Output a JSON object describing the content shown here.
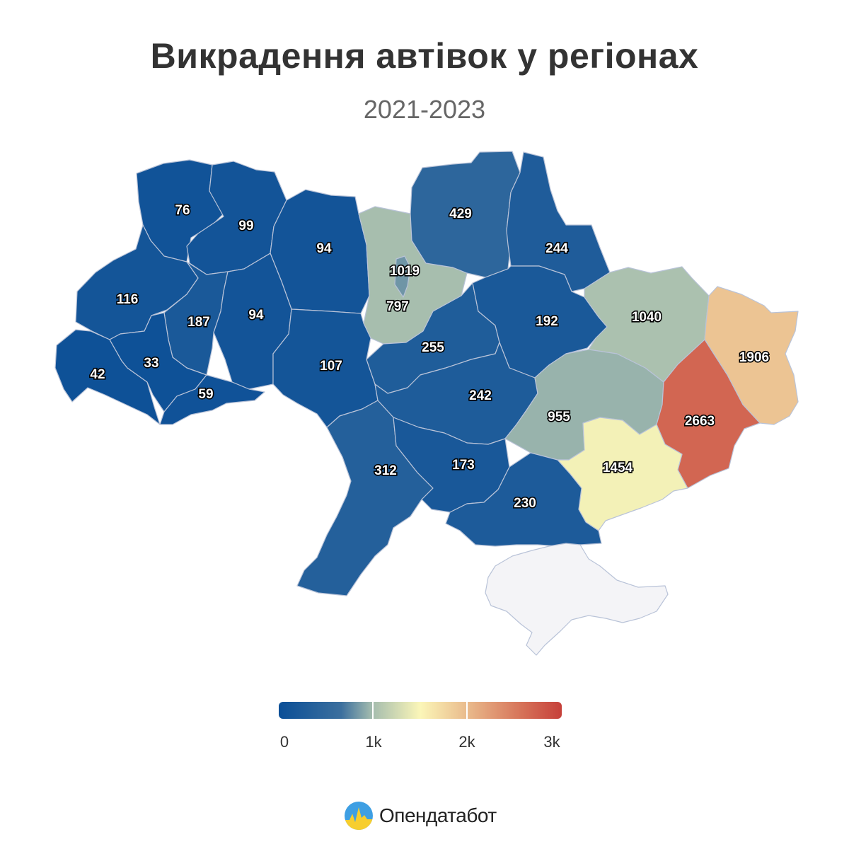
{
  "title": "Викрадення автівок у регіонах",
  "subtitle": "2021-2023",
  "legend": {
    "ticks": [
      "0",
      "1k",
      "2k",
      "3k"
    ],
    "min": 0,
    "max": 3000,
    "colors": [
      "#0b4f97",
      "#a4bcae",
      "#fbf6b8",
      "#e9b98b",
      "#c6403a"
    ]
  },
  "regions": [
    {
      "id": "volyn",
      "value": 76
    },
    {
      "id": "rivne",
      "value": 99
    },
    {
      "id": "zhytomyr",
      "value": 94
    },
    {
      "id": "kyiv-oblast",
      "value": 1019
    },
    {
      "id": "kyiv-city",
      "value": 797
    },
    {
      "id": "chernihiv",
      "value": 429
    },
    {
      "id": "sumy",
      "value": 244
    },
    {
      "id": "lviv",
      "value": 116
    },
    {
      "id": "ternopil",
      "value": 187
    },
    {
      "id": "khmelnytskyi",
      "value": 94
    },
    {
      "id": "vinnytsia",
      "value": 107
    },
    {
      "id": "cherkasy",
      "value": 255
    },
    {
      "id": "poltava",
      "value": 192
    },
    {
      "id": "kharkiv",
      "value": 1040
    },
    {
      "id": "luhansk",
      "value": 1906
    },
    {
      "id": "zakarpattia",
      "value": 42
    },
    {
      "id": "ivano-frankivsk",
      "value": 33
    },
    {
      "id": "chernivtsi",
      "value": 59
    },
    {
      "id": "kirovohrad",
      "value": 242
    },
    {
      "id": "dnipropetrovsk",
      "value": 955
    },
    {
      "id": "donetsk",
      "value": 2663
    },
    {
      "id": "zaporizhzhia",
      "value": 1454
    },
    {
      "id": "odesa",
      "value": 312
    },
    {
      "id": "mykolaiv",
      "value": 173
    },
    {
      "id": "kherson",
      "value": 230
    },
    {
      "id": "crimea",
      "value": null
    }
  ],
  "brand": {
    "name": "Опендатабот"
  }
}
